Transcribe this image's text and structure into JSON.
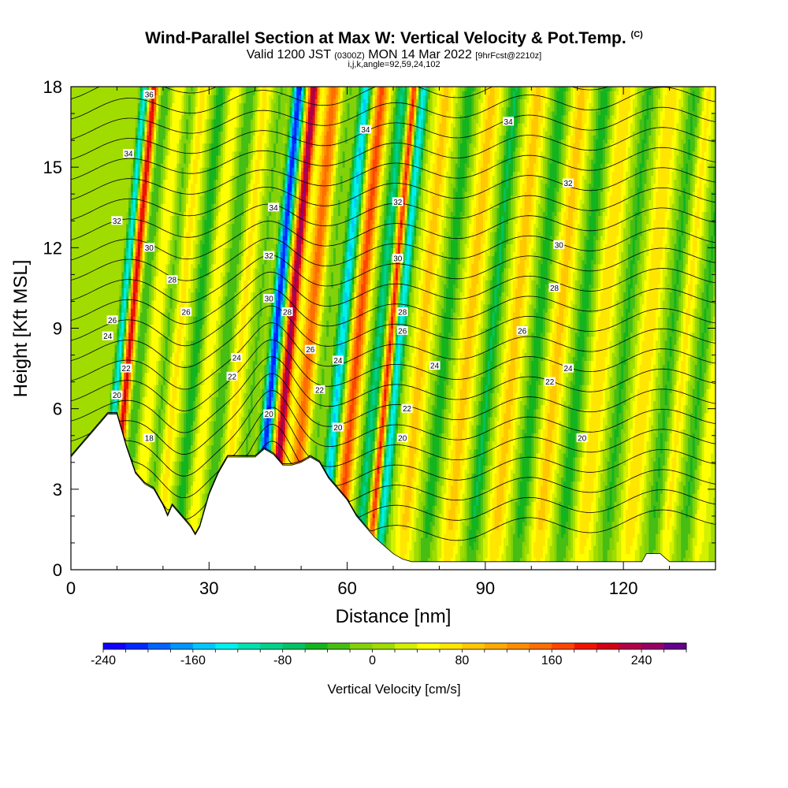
{
  "header": {
    "title": "Wind-Parallel Section at Max W: Vertical Velocity & Pot.Temp.",
    "copyright": "(C)",
    "valid_prefix": "Valid 1200 JST",
    "valid_zulu": "(0300Z)",
    "valid_date": "MON 14 Mar 2022",
    "forecast": "[9hrFcst@2210z]",
    "indices": "i,j,k,angle=92,59,24,102"
  },
  "chart_data": {
    "type": "heatmap",
    "title": "Wind-Parallel Section at Max W: Vertical Velocity & Pot.Temp.",
    "xlabel": "Distance [nm]",
    "ylabel": "Height [Kft MSL]",
    "xlim": [
      0,
      140
    ],
    "ylim": [
      0,
      18
    ],
    "xticks": [
      0,
      30,
      60,
      90,
      120
    ],
    "yticks": [
      0,
      3,
      6,
      9,
      12,
      15,
      18
    ],
    "colorbar": {
      "label": "Vertical Velocity [cm/s]",
      "ticks": [
        -240,
        -160,
        -80,
        0,
        80,
        160,
        240
      ],
      "bounds": [
        -240,
        280
      ],
      "step": 20,
      "colors": [
        "#1200ff",
        "#0028ff",
        "#0064ff",
        "#0096ff",
        "#00c8ff",
        "#00f0f0",
        "#00e0b0",
        "#00d28c",
        "#00c364",
        "#14b41e",
        "#46be14",
        "#82d20a",
        "#a0dc00",
        "#d2f000",
        "#ffff00",
        "#ffe600",
        "#ffc800",
        "#ffaa00",
        "#ff8c00",
        "#ff6e00",
        "#ff4600",
        "#f01400",
        "#d20014",
        "#b40046",
        "#960064",
        "#64008c"
      ]
    },
    "terrain": {
      "x": [
        0,
        2,
        4,
        6,
        8,
        10,
        11,
        12,
        14,
        16,
        18,
        20,
        21,
        22,
        24,
        26,
        27,
        28,
        30,
        32,
        34,
        36,
        38,
        40,
        42,
        44,
        46,
        48,
        50,
        52,
        54,
        56,
        58,
        60,
        62,
        64,
        66,
        68,
        70,
        72,
        74,
        76,
        78,
        80,
        85,
        90,
        95,
        100,
        105,
        110,
        115,
        120,
        124,
        125,
        128,
        130,
        135,
        140
      ],
      "height_kft": [
        4.2,
        4.6,
        5.0,
        5.4,
        5.8,
        5.8,
        5.2,
        4.6,
        3.6,
        3.2,
        3.0,
        2.4,
        2.0,
        2.4,
        2.0,
        1.6,
        1.3,
        1.6,
        2.8,
        3.6,
        4.2,
        4.2,
        4.2,
        4.2,
        4.5,
        4.3,
        3.9,
        3.9,
        4.0,
        4.2,
        4.0,
        3.4,
        3.0,
        2.6,
        2.0,
        1.6,
        1.2,
        0.9,
        0.6,
        0.4,
        0.3,
        0.3,
        0.3,
        0.3,
        0.3,
        0.3,
        0.3,
        0.3,
        0.3,
        0.3,
        0.3,
        0.3,
        0.3,
        0.6,
        0.6,
        0.3,
        0.3,
        0.3
      ]
    },
    "contour_labels": [
      {
        "x": 17,
        "y": 17.7,
        "text": "36"
      },
      {
        "x": 12.5,
        "y": 15.5,
        "text": "34"
      },
      {
        "x": 64,
        "y": 16.4,
        "text": "34"
      },
      {
        "x": 95,
        "y": 16.7,
        "text": "34"
      },
      {
        "x": 44,
        "y": 13.5,
        "text": "34"
      },
      {
        "x": 10,
        "y": 13.0,
        "text": "32"
      },
      {
        "x": 71,
        "y": 13.7,
        "text": "32"
      },
      {
        "x": 108,
        "y": 14.4,
        "text": "32"
      },
      {
        "x": 43,
        "y": 11.7,
        "text": "32"
      },
      {
        "x": 17,
        "y": 12.0,
        "text": "30"
      },
      {
        "x": 71,
        "y": 11.6,
        "text": "30"
      },
      {
        "x": 106,
        "y": 12.1,
        "text": "30"
      },
      {
        "x": 43,
        "y": 10.1,
        "text": "30"
      },
      {
        "x": 22,
        "y": 10.8,
        "text": "28"
      },
      {
        "x": 72,
        "y": 9.6,
        "text": "28"
      },
      {
        "x": 105,
        "y": 10.5,
        "text": "28"
      },
      {
        "x": 47,
        "y": 9.6,
        "text": "28"
      },
      {
        "x": 25,
        "y": 9.6,
        "text": "26"
      },
      {
        "x": 9,
        "y": 9.3,
        "text": "26"
      },
      {
        "x": 72,
        "y": 8.9,
        "text": "26"
      },
      {
        "x": 98,
        "y": 8.9,
        "text": "26"
      },
      {
        "x": 52,
        "y": 8.2,
        "text": "26"
      },
      {
        "x": 8,
        "y": 8.7,
        "text": "24"
      },
      {
        "x": 36,
        "y": 7.9,
        "text": "24"
      },
      {
        "x": 58,
        "y": 7.8,
        "text": "24"
      },
      {
        "x": 79,
        "y": 7.6,
        "text": "24"
      },
      {
        "x": 108,
        "y": 7.5,
        "text": "24"
      },
      {
        "x": 12,
        "y": 7.5,
        "text": "22"
      },
      {
        "x": 35,
        "y": 7.2,
        "text": "22"
      },
      {
        "x": 54,
        "y": 6.7,
        "text": "22"
      },
      {
        "x": 73,
        "y": 6.0,
        "text": "22"
      },
      {
        "x": 104,
        "y": 7.0,
        "text": "22"
      },
      {
        "x": 10,
        "y": 6.5,
        "text": "20"
      },
      {
        "x": 43,
        "y": 5.8,
        "text": "20"
      },
      {
        "x": 58,
        "y": 5.3,
        "text": "20"
      },
      {
        "x": 72,
        "y": 4.9,
        "text": "20"
      },
      {
        "x": 111,
        "y": 4.9,
        "text": "20"
      },
      {
        "x": 17,
        "y": 4.9,
        "text": "18"
      }
    ]
  }
}
